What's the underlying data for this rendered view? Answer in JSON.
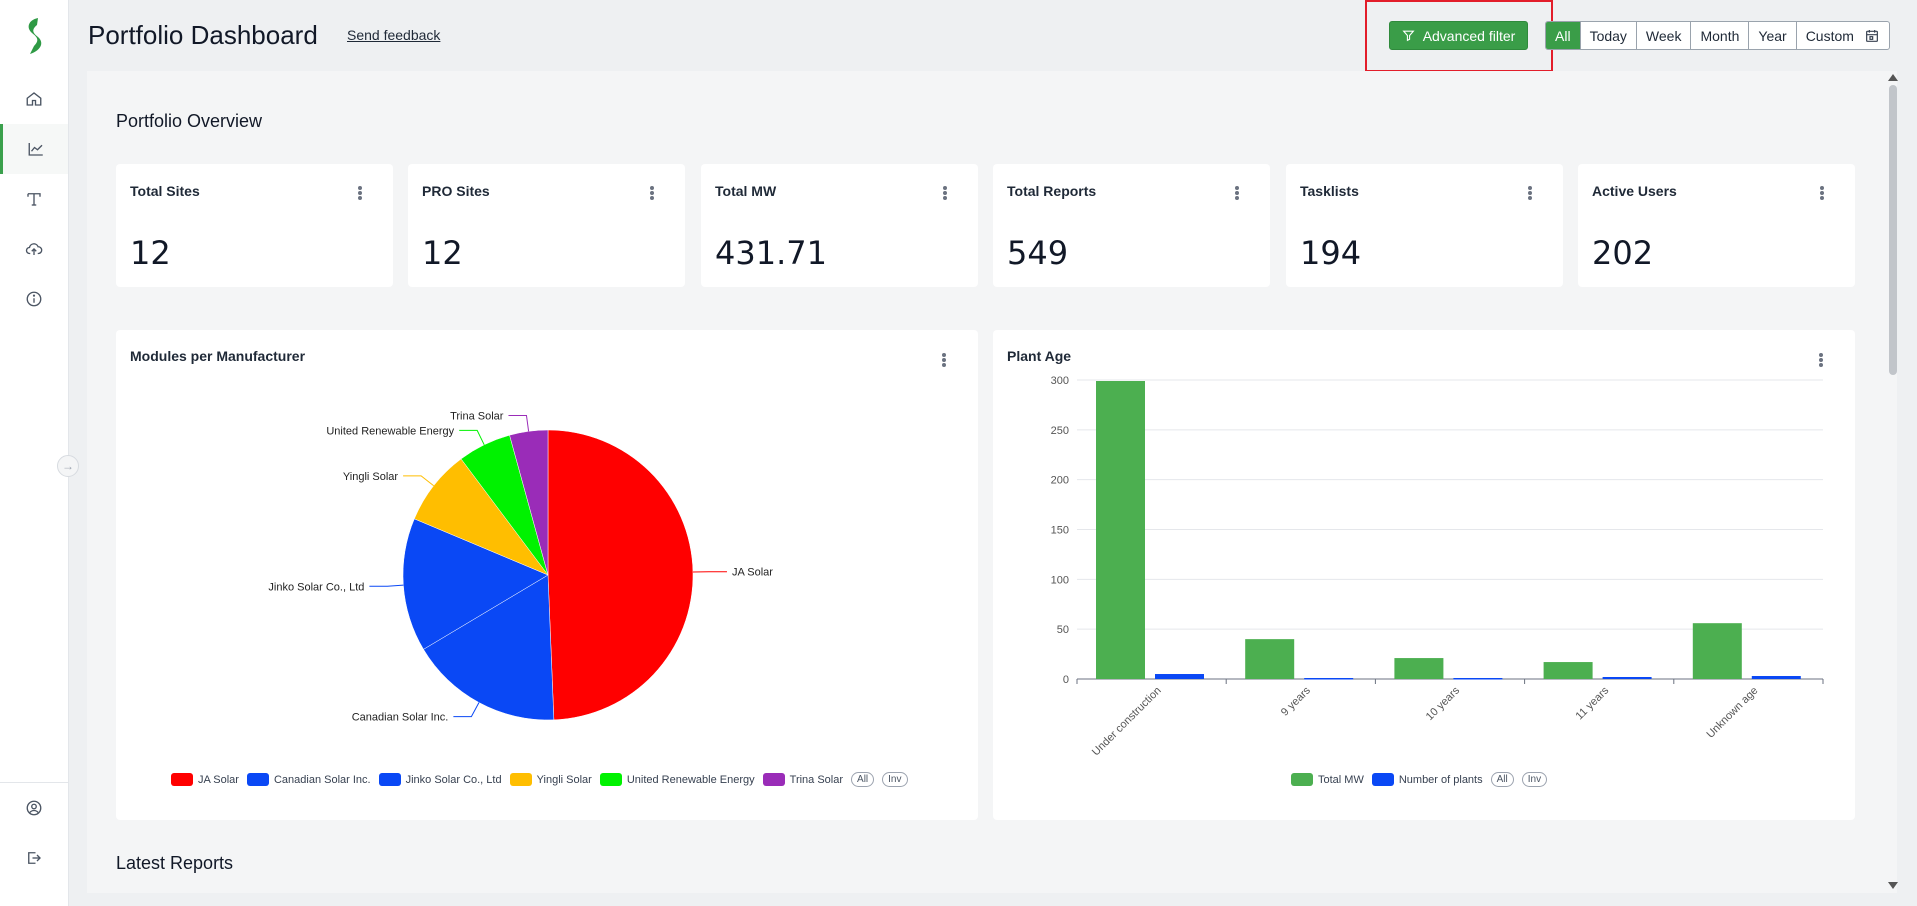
{
  "header": {
    "title": "Portfolio Dashboard",
    "feedback": "Send feedback",
    "advanced_filter": "Advanced filter",
    "ranges": [
      "All",
      "Today",
      "Week",
      "Month",
      "Year",
      "Custom"
    ],
    "active_range": "All"
  },
  "sidebar": {
    "items": [
      {
        "icon": "home-icon"
      },
      {
        "icon": "analytics-icon",
        "active": true
      },
      {
        "icon": "text-tool-icon"
      },
      {
        "icon": "cloud-upload-icon"
      },
      {
        "icon": "info-icon"
      }
    ],
    "bottom": [
      {
        "icon": "user-circle-icon"
      },
      {
        "icon": "logout-icon"
      }
    ]
  },
  "overview": {
    "title": "Portfolio Overview",
    "kpis": [
      {
        "label": "Total Sites",
        "value": "12"
      },
      {
        "label": "PRO Sites",
        "value": "12"
      },
      {
        "label": "Total MW",
        "value": "431.71"
      },
      {
        "label": "Total Reports",
        "value": "549"
      },
      {
        "label": "Tasklists",
        "value": "194"
      },
      {
        "label": "Active Users",
        "value": "202"
      }
    ]
  },
  "latest_reports": {
    "title": "Latest Reports"
  },
  "legend_controls": {
    "all": "All",
    "inv": "Inv"
  },
  "chart_data": [
    {
      "type": "pie",
      "title": "Modules per Manufacturer",
      "categories": [
        "JA Solar",
        "Canadian Solar Inc.",
        "Jinko Solar Co., Ltd",
        "Yingli Solar",
        "United Renewable Energy",
        "Trina Solar"
      ],
      "values": [
        49.7,
        17.2,
        15.0,
        8.5,
        6.0,
        4.3
      ],
      "colors": [
        "#ff0000",
        "#0a48f5",
        "#0a48f5",
        "#ffbe00",
        "#00f200",
        "#9a2cb8"
      ],
      "legend": "bottom"
    },
    {
      "type": "bar",
      "title": "Plant Age",
      "categories": [
        "Under construction",
        "9 years",
        "10 years",
        "11 years",
        "Unknown age"
      ],
      "series": [
        {
          "name": "Total MW",
          "values": [
            299,
            40,
            21,
            17,
            56
          ],
          "color": "#4caf50"
        },
        {
          "name": "Number of plants",
          "values": [
            5,
            1,
            1,
            2,
            3
          ],
          "color": "#0a48f5"
        }
      ],
      "ylim": [
        0,
        300
      ],
      "yticks": [
        "0",
        "50",
        "100",
        "150",
        "200",
        "250",
        "300"
      ],
      "grid": true,
      "legend": "bottom"
    }
  ]
}
